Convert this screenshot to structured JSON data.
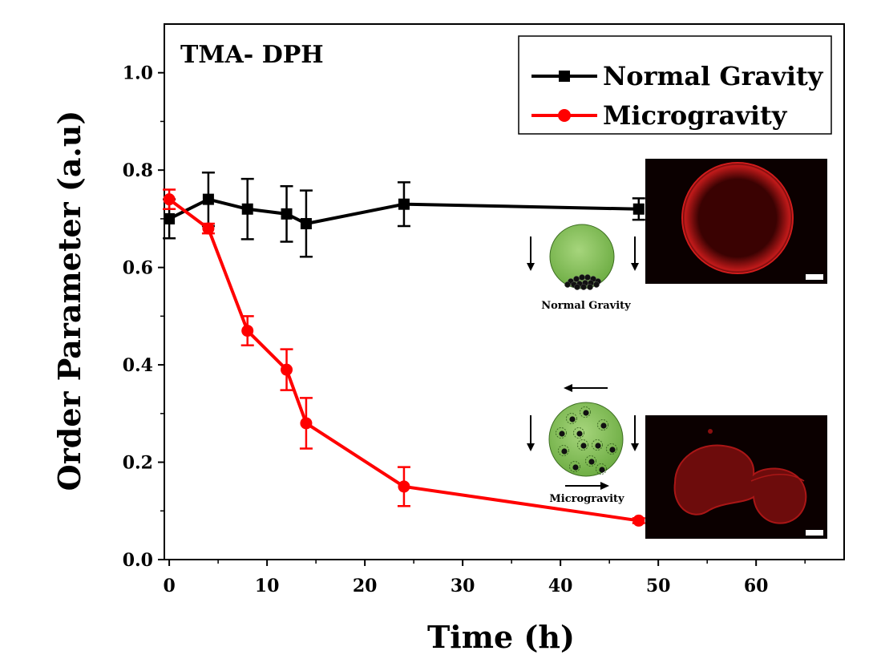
{
  "chart_data": {
    "type": "line",
    "title": "TMA- DPH",
    "xlabel": "Time (h)",
    "ylabel": "Order Parameter (a.u)",
    "xlim": [
      -0.5,
      69
    ],
    "ylim": [
      0.0,
      1.1
    ],
    "xticks": [
      0,
      10,
      20,
      30,
      40,
      50,
      60
    ],
    "yticks": [
      0.0,
      0.2,
      0.4,
      0.6,
      0.8,
      1.0
    ],
    "ytick_labels": [
      "0.0",
      "0.2",
      "0.4",
      "0.6",
      "0.8",
      "1.0"
    ],
    "grid": false,
    "legend_position": "top-right",
    "series": [
      {
        "name": "Normal Gravity",
        "color": "#000000",
        "marker": "square",
        "x": [
          0,
          4,
          8,
          12,
          14,
          24,
          48
        ],
        "y": [
          0.7,
          0.74,
          0.72,
          0.71,
          0.69,
          0.73,
          0.72
        ],
        "err": [
          0.04,
          0.055,
          0.062,
          0.057,
          0.068,
          0.045,
          0.022
        ]
      },
      {
        "name": "Microgravity",
        "color": "#ff0000",
        "marker": "circle",
        "x": [
          0,
          4,
          8,
          12,
          14,
          24,
          48
        ],
        "y": [
          0.74,
          0.68,
          0.47,
          0.39,
          0.28,
          0.15,
          0.08
        ],
        "err": [
          0.02,
          0.01,
          0.03,
          0.042,
          0.052,
          0.04,
          0.005
        ]
      }
    ],
    "insets": [
      {
        "caption": "Normal Gravity",
        "icon": "sphere-sedimented-cells-icon",
        "image": "red-fluorescent-round-vesicle-image"
      },
      {
        "caption": "Microgravity",
        "icon": "sphere-suspended-cells-icon",
        "image": "red-fluorescent-deformed-vesicle-image"
      }
    ]
  }
}
